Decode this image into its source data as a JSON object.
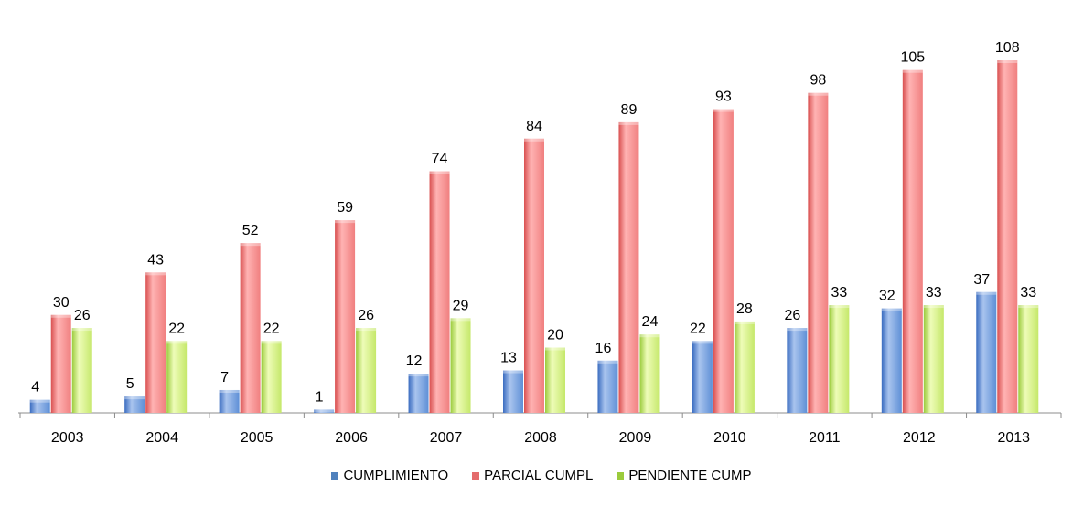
{
  "chart_data": {
    "type": "bar",
    "categories": [
      "2003",
      "2004",
      "2005",
      "2006",
      "2007",
      "2008",
      "2009",
      "2010",
      "2011",
      "2012",
      "2013"
    ],
    "series": [
      {
        "name": "CUMPLIMIENTO",
        "values": [
          4,
          5,
          7,
          1,
          12,
          13,
          16,
          22,
          26,
          32,
          37
        ],
        "color": "#4f81bd"
      },
      {
        "name": "PARCIAL CUMPL",
        "values": [
          30,
          43,
          52,
          59,
          74,
          84,
          89,
          93,
          98,
          105,
          108
        ],
        "color": "#e46c6c"
      },
      {
        "name": "PENDIENTE CUMP",
        "values": [
          26,
          22,
          22,
          26,
          29,
          20,
          24,
          28,
          33,
          33,
          33
        ],
        "color": "#9bcb3c"
      }
    ],
    "title": "",
    "xlabel": "",
    "ylabel": "",
    "ylim": [
      0,
      110
    ],
    "grid": false,
    "legend_position": "bottom",
    "data_labels": true
  }
}
